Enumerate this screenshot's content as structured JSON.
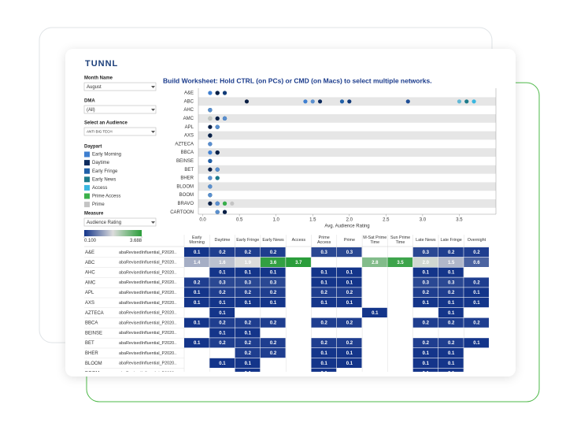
{
  "logo": "TUNNL",
  "filters": [
    {
      "label": "Month Name",
      "value": "August"
    },
    {
      "label": "DMA",
      "value": "(All)"
    },
    {
      "label": "Select an Audience",
      "value": "ANTI BIG TECH"
    }
  ],
  "legend": {
    "title": "Daypart"
  },
  "measure": {
    "label": "Measure",
    "value": "Audience Rating"
  },
  "chart_data": {
    "type": "scatter",
    "title": "Build Worksheet: Hold CTRL (on PCs) or CMD (on Macs) to select multiple networks.",
    "x_label": "Avg. Audience Rating",
    "xlim": [
      -0.06,
      4.0
    ],
    "xticks": [
      {
        "value": 0,
        "label": "0.0"
      },
      {
        "value": 0.5,
        "label": "0.5"
      },
      {
        "value": 1,
        "label": "1.0"
      },
      {
        "value": 1.5,
        "label": "1.5"
      },
      {
        "value": 2,
        "label": "2.0"
      },
      {
        "value": 2.5,
        "label": "2.5"
      },
      {
        "value": 3,
        "label": "3.0"
      },
      {
        "value": 3.5,
        "label": "3.5"
      }
    ],
    "categories": [
      "A&E",
      "ABC",
      "AHC",
      "AMC",
      "APL",
      "AXS",
      "AZTECA",
      "BBCA",
      "BEINSE",
      "BET",
      "BHER",
      "BLOOM",
      "BOOM",
      "BRAVO",
      "CARTOON"
    ],
    "table_metric": "abaRevisedInfluential_P2020..",
    "series": [
      {
        "name": "Early Morning",
        "color": "#3f7fd0",
        "values": [
          0.1,
          1.4,
          null,
          0.2,
          0.1,
          0.1,
          null,
          0.1,
          null,
          0.1,
          null,
          null,
          null,
          0.1,
          0.3
        ]
      },
      {
        "name": "Daytime",
        "color": "#0d2b5e",
        "values": [
          0.2,
          1.6,
          0.1,
          0.3,
          0.2,
          0.1,
          0.1,
          0.2,
          0.1,
          0.2,
          null,
          0.1,
          null,
          0.2,
          0.3
        ]
      },
      {
        "name": "Early Fringe",
        "color": "#2160a8",
        "values": [
          0.2,
          1.9,
          0.1,
          0.3,
          0.2,
          0.1,
          null,
          0.2,
          0.1,
          0.2,
          0.2,
          0.1,
          0.1,
          0.2,
          0.2
        ]
      },
      {
        "name": "Early News",
        "color": "#1d7b8a",
        "values": [
          0.2,
          3.6,
          0.1,
          0.3,
          0.2,
          0.1,
          null,
          0.2,
          null,
          0.2,
          0.2,
          null,
          null,
          0.3,
          0.3
        ]
      },
      {
        "name": "Access",
        "color": "#3ab7e0",
        "values": [
          null,
          3.7,
          null,
          null,
          null,
          null,
          null,
          null,
          null,
          null,
          null,
          null,
          null,
          null,
          null
        ]
      },
      {
        "name": "Prime Access",
        "color": "#3bb04a",
        "values": [
          0.3,
          null,
          0.1,
          0.1,
          0.2,
          0.1,
          null,
          0.2,
          null,
          0.2,
          0.1,
          0.1,
          0.1,
          0.3,
          0.2
        ]
      },
      {
        "name": "Prime",
        "color": "#c4c4c4",
        "values": [
          0.3,
          null,
          0.1,
          0.1,
          0.2,
          0.1,
          null,
          0.2,
          null,
          0.2,
          0.1,
          0.1,
          null,
          0.4,
          0.2
        ]
      },
      {
        "name": "M-Sat Prime Time",
        "color": "#1f4e96",
        "values": [
          null,
          2.8,
          null,
          null,
          null,
          null,
          0.1,
          null,
          null,
          null,
          null,
          null,
          null,
          null,
          null
        ]
      },
      {
        "name": "Sun Prime Time",
        "color": "#62b8d6",
        "values": [
          null,
          3.5,
          null,
          null,
          null,
          null,
          null,
          null,
          null,
          null,
          null,
          null,
          null,
          null,
          null
        ]
      },
      {
        "name": "Late News",
        "color": "#123b7a",
        "values": [
          0.3,
          2.0,
          0.1,
          0.3,
          0.2,
          0.1,
          null,
          0.2,
          null,
          0.2,
          0.1,
          0.1,
          0.1,
          0.2,
          0.2
        ],
        "value_labels": [
          "0.3",
          "2.0",
          "0.1",
          "0.3",
          "0.2",
          "0.1",
          null,
          "0.2",
          null,
          "0.2",
          "0.1",
          "0.1",
          "0.1",
          "0.2",
          "0.2"
        ]
      },
      {
        "name": "Late Fringe",
        "color": "#5a8fcf",
        "values": [
          0.2,
          1.5,
          0.1,
          0.3,
          0.2,
          0.1,
          0.1,
          0.2,
          null,
          0.2,
          0.1,
          0.1,
          0.1,
          0.2,
          0.2
        ]
      },
      {
        "name": "Overnight",
        "color": "#0b1f44",
        "values": [
          0.2,
          0.6,
          null,
          0.2,
          0.1,
          0.1,
          null,
          0.2,
          null,
          0.1,
          null,
          null,
          null,
          0.1,
          0.3
        ]
      }
    ],
    "color_scale": {
      "colors": [
        "#14358a",
        "#dcdcdc",
        "#2a9d3a"
      ],
      "ticks": [
        {
          "value": 0.1,
          "label": "0.100"
        },
        {
          "value": 3.688,
          "label": "3.688"
        }
      ]
    }
  }
}
